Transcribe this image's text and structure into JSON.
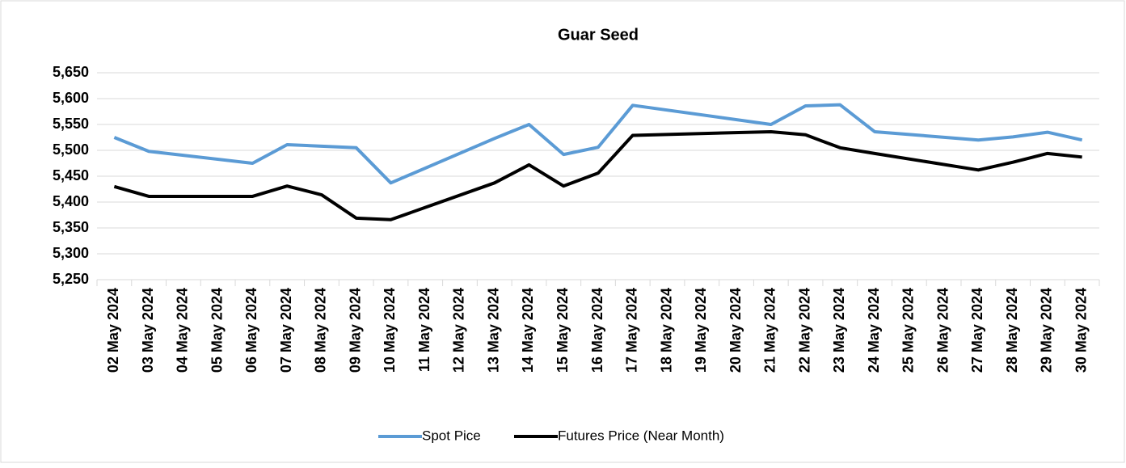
{
  "chart_data": {
    "type": "line",
    "title": "Guar Seed",
    "xticks": [
      "02 May 2024",
      "03 May 2024",
      "04 May 2024",
      "05 May 2024",
      "06 May 2024",
      "07 May 2024",
      "08 May 2024",
      "09 May 2024",
      "10 May 2024",
      "11 May 2024",
      "12 May 2024",
      "13 May 2024",
      "14 May 2024",
      "15 May 2024",
      "16 May 2024",
      "17 May 2024",
      "18 May 2024",
      "19 May 2024",
      "20 May 2024",
      "21 May 2024",
      "22 May 2024",
      "23 May 2024",
      "24 May 2024",
      "25 May 2024",
      "26 May 2024",
      "27 May 2024",
      "28 May 2024",
      "29 May 2024",
      "30 May 2024"
    ],
    "x": [
      "02 May 2024",
      "03 May 2024",
      "06 May 2024",
      "07 May 2024",
      "08 May 2024",
      "09 May 2024",
      "10 May 2024",
      "13 May 2024",
      "14 May 2024",
      "15 May 2024",
      "16 May 2024",
      "17 May 2024",
      "21 May 2024",
      "22 May 2024",
      "23 May 2024",
      "24 May 2024",
      "27 May 2024",
      "28 May 2024",
      "29 May 2024",
      "30 May 2024"
    ],
    "series": [
      {
        "name": "Spot Pice",
        "color": "#5b9bd5",
        "values": [
          5525,
          5498,
          5475,
          5511,
          5508,
          5505,
          5437,
          5523,
          5550,
          5492,
          5506,
          5587,
          5550,
          5586,
          5588,
          5536,
          5520,
          5526,
          5535,
          5520
        ]
      },
      {
        "name": "Futures Price (Near Month)",
        "color": "#000000",
        "values": [
          5430,
          5411,
          5411,
          5431,
          5414,
          5369,
          5366,
          5437,
          5472,
          5431,
          5456,
          5529,
          5536,
          5530,
          5505,
          5494,
          5462,
          5477,
          5494,
          5487
        ]
      }
    ],
    "ylim": [
      5250,
      5650
    ],
    "yticks": [
      {
        "value": 5250,
        "label": "5,250"
      },
      {
        "value": 5300,
        "label": "5,300"
      },
      {
        "value": 5350,
        "label": "5,350"
      },
      {
        "value": 5400,
        "label": "5,400"
      },
      {
        "value": 5450,
        "label": "5,450"
      },
      {
        "value": 5500,
        "label": "5,500"
      },
      {
        "value": 5550,
        "label": "5,550"
      },
      {
        "value": 5600,
        "label": "5,600"
      },
      {
        "value": 5650,
        "label": "5,650"
      }
    ],
    "grid": true,
    "legend": "bottom"
  }
}
